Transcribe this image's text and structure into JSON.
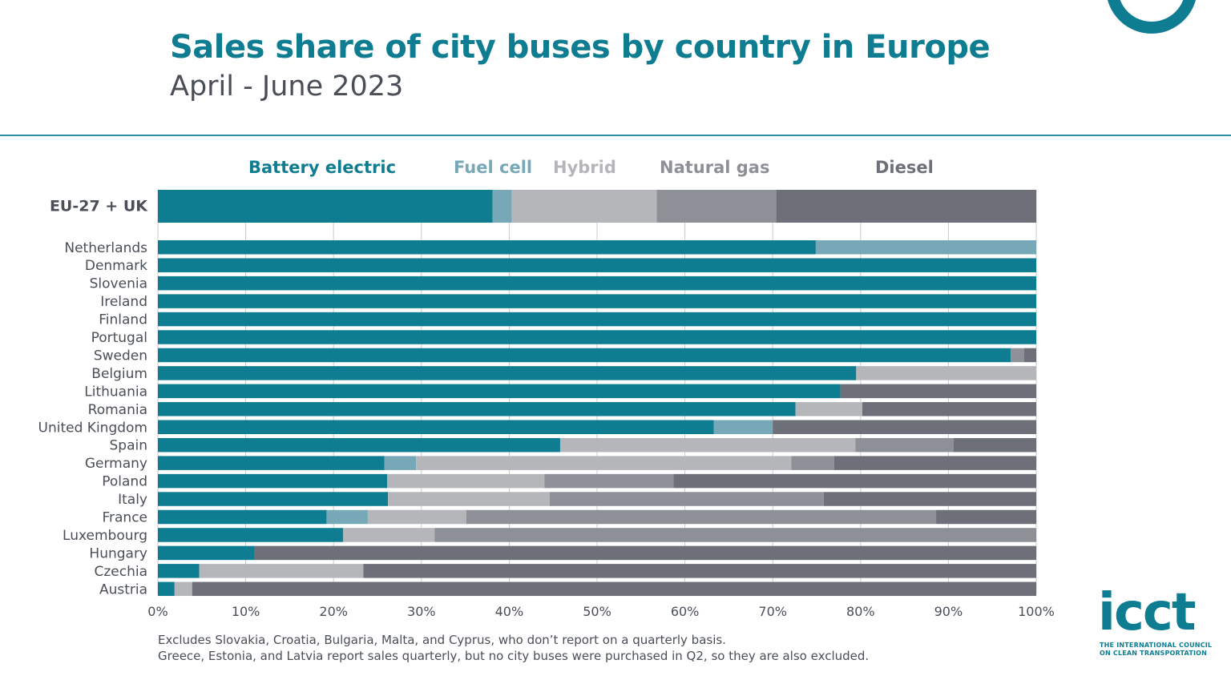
{
  "header": {
    "title": "Sales share of city buses by country in Europe",
    "subtitle": "April - June 2023"
  },
  "footnotes": [
    "Excludes Slovakia, Croatia, Bulgaria, Malta, and Cyprus, who don’t report on a quarterly basis.",
    "Greece, Estonia, and Latvia report sales quarterly, but no city buses were purchased in Q2, so they are also excluded."
  ],
  "logo": {
    "word": "icct",
    "line1": "THE INTERNATIONAL COUNCIL",
    "line2": "ON CLEAN TRANSPORTATION"
  },
  "colors": {
    "brand": "#0e7d91",
    "battery_electric": "#0e7d91",
    "fuel_cell": "#76a8b8",
    "hybrid": "#b5b6b9",
    "natural_gas": "#8e9097",
    "diesel": "#6d7078",
    "text": "#4a4f57"
  },
  "chart_data": {
    "type": "bar",
    "orientation": "horizontal",
    "stacked": true,
    "title": "Sales share of city buses by country in Europe",
    "subtitle": "April - June 2023",
    "xlabel": "",
    "ylabel": "",
    "xlim": [
      0,
      100
    ],
    "xticks": [
      "0%",
      "10%",
      "20%",
      "30%",
      "40%",
      "50%",
      "60%",
      "70%",
      "80%",
      "90%",
      "100%"
    ],
    "grid": true,
    "legend_position": "top",
    "categories": [
      "EU-27 + UK",
      "Netherlands",
      "Denmark",
      "Slovenia",
      "Ireland",
      "Finland",
      "Portugal",
      "Sweden",
      "Belgium",
      "Lithuania",
      "Romania",
      "United Kingdom",
      "Spain",
      "Germany",
      "Poland",
      "Italy",
      "France",
      "Luxembourg",
      "Hungary",
      "Czechia",
      "Austria"
    ],
    "series": [
      {
        "name": "Battery electric",
        "values": [
          38.1,
          74.9,
          100,
          100,
          100,
          100,
          100,
          97.1,
          79.5,
          77.7,
          72.6,
          63.3,
          45.8,
          25.8,
          26.1,
          26.2,
          19.2,
          21.1,
          11.0,
          4.7,
          1.9
        ]
      },
      {
        "name": "Fuel cell",
        "values": [
          2.2,
          25.1,
          0,
          0,
          0,
          0,
          0,
          0,
          0,
          0,
          0,
          6.7,
          0,
          3.6,
          0,
          0,
          4.7,
          0,
          0,
          0,
          0
        ]
      },
      {
        "name": "Hybrid",
        "values": [
          16.5,
          0,
          0,
          0,
          0,
          0,
          0,
          0,
          20.5,
          0,
          7.6,
          0,
          33.6,
          42.7,
          17.9,
          18.4,
          11.2,
          10.4,
          0,
          18.7,
          2.0
        ]
      },
      {
        "name": "Natural gas",
        "values": [
          13.6,
          0,
          0,
          0,
          0,
          0,
          0,
          1.5,
          0,
          0,
          0,
          0,
          11.2,
          4.9,
          14.7,
          31.2,
          53.5,
          68.5,
          0,
          0,
          0
        ]
      },
      {
        "name": "Diesel",
        "values": [
          29.6,
          0,
          0,
          0,
          0,
          0,
          0,
          1.4,
          0,
          22.3,
          19.8,
          30.0,
          9.4,
          23.0,
          41.3,
          24.2,
          11.4,
          0,
          89.0,
          76.6,
          96.1
        ]
      }
    ]
  }
}
